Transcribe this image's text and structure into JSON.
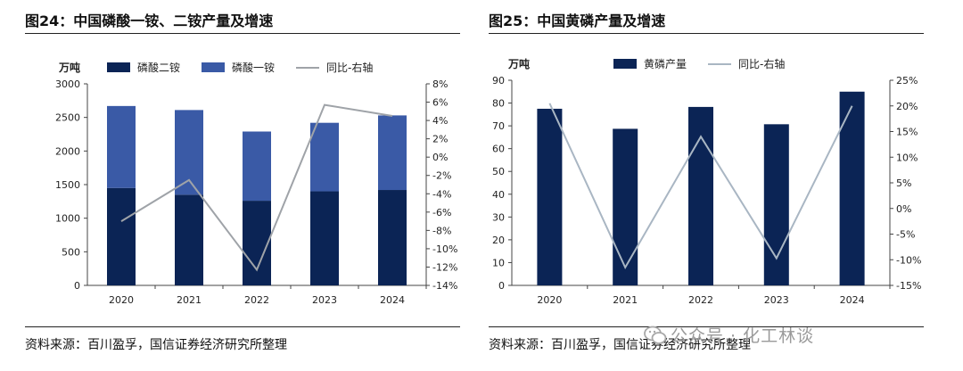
{
  "figures": [
    {
      "id": "fig24",
      "title": "图24：中国磷酸一铵、二铵产量及增速",
      "source": "资料来源：百川盈孚，国信证券经济研究所整理",
      "chart_data": {
        "type": "bar",
        "stacked": true,
        "categories": [
          "2020",
          "2021",
          "2022",
          "2023",
          "2024"
        ],
        "series": [
          {
            "name": "磷酸二铵",
            "type": "bar",
            "axis": "left",
            "color": "#0b2455",
            "values": [
              1450,
              1350,
              1260,
              1400,
              1420
            ]
          },
          {
            "name": "磷酸一铵",
            "type": "bar",
            "axis": "left",
            "color": "#3a5aa6",
            "values": [
              1220,
              1260,
              1030,
              1020,
              1110
            ]
          },
          {
            "name": "同比-右轴",
            "type": "line",
            "axis": "right",
            "color": "#9fa3a8",
            "values": [
              -7.0,
              -2.5,
              -12.3,
              5.7,
              4.5
            ]
          }
        ],
        "left_axis": {
          "unit": "万吨",
          "min": 0,
          "max": 3000,
          "step": 500,
          "ticks": [
            "0",
            "500",
            "1000",
            "1500",
            "2000",
            "2500",
            "3000"
          ]
        },
        "right_axis": {
          "min": -14,
          "max": 8,
          "step": 2,
          "ticks": [
            "-14%",
            "-12%",
            "-10%",
            "-8%",
            "-6%",
            "-4%",
            "-2%",
            "0%",
            "2%",
            "4%",
            "6%",
            "8%"
          ]
        },
        "legend_position": "top",
        "grid": false
      }
    },
    {
      "id": "fig25",
      "title": "图25：中国黄磷产量及增速",
      "source": "资料来源：百川盈孚，国信证券经济研究所整理",
      "chart_data": {
        "type": "bar",
        "categories": [
          "2020",
          "2021",
          "2022",
          "2023",
          "2024"
        ],
        "series": [
          {
            "name": "黄磷产量",
            "type": "bar",
            "axis": "left",
            "color": "#0b2455",
            "values": [
              77.5,
              68.7,
              78.3,
              70.7,
              85.0
            ]
          },
          {
            "name": "同比-右轴",
            "type": "line",
            "axis": "right",
            "color": "#a9b6c3",
            "values": [
              20.5,
              -11.5,
              14.0,
              -9.7,
              20.0
            ]
          }
        ],
        "left_axis": {
          "unit": "万吨",
          "min": 0,
          "max": 90,
          "step": 10,
          "ticks": [
            "0",
            "10",
            "20",
            "30",
            "40",
            "50",
            "60",
            "70",
            "80",
            "90"
          ]
        },
        "right_axis": {
          "min": -15,
          "max": 25,
          "step": 5,
          "ticks": [
            "-15%",
            "-10%",
            "-5%",
            "0%",
            "5%",
            "10%",
            "15%",
            "20%",
            "25%"
          ]
        },
        "legend_position": "top",
        "grid": false
      }
    }
  ],
  "watermark": {
    "text": "公众号 · 化工林谈",
    "icon": "wechat-icon"
  }
}
